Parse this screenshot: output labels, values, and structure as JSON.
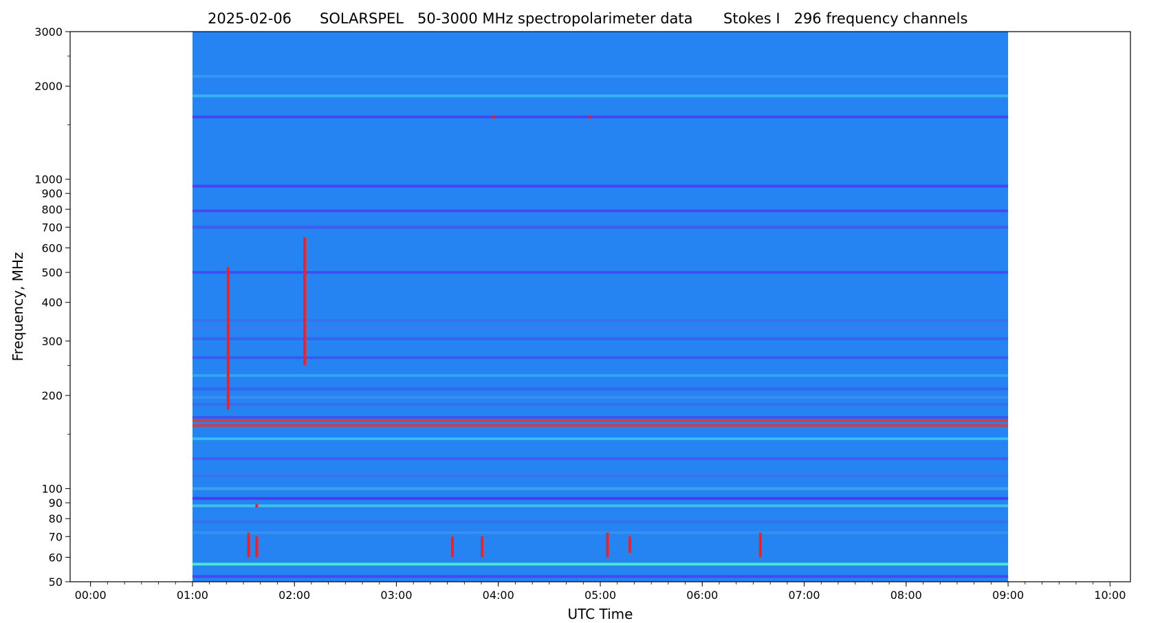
{
  "chart_data": {
    "type": "heatmap",
    "title_parts": {
      "date": "2025-02-06",
      "instrument": "SOLARSPEL   50-3000 MHz spectropolarimeter data",
      "stokes": "Stokes I   296 frequency channels"
    },
    "xlabel": "UTC Time",
    "ylabel": "Frequency, MHz",
    "x_axis": {
      "unit": "UTC hours",
      "range": [
        -0.2,
        10.2
      ],
      "major_ticks": [
        0,
        1,
        2,
        3,
        4,
        5,
        6,
        7,
        8,
        9,
        10
      ],
      "tick_labels": [
        "00:00",
        "01:00",
        "02:00",
        "03:00",
        "04:00",
        "05:00",
        "06:00",
        "07:00",
        "08:00",
        "09:00",
        "10:00"
      ],
      "minor_step": 0.16667
    },
    "y_axis": {
      "scale": "log",
      "range": [
        50,
        3000
      ],
      "tick_values": [
        50,
        60,
        70,
        80,
        90,
        100,
        200,
        300,
        400,
        500,
        600,
        700,
        800,
        900,
        1000,
        2000,
        3000
      ],
      "tick_labels": [
        "50",
        "60",
        "70",
        "80",
        "90",
        "100",
        "200",
        "300",
        "400",
        "500",
        "600",
        "700",
        "800",
        "900",
        "1000",
        "2000",
        "3000"
      ],
      "minor_ticks": [
        150,
        250,
        1500,
        2500
      ]
    },
    "data_extent": {
      "time_start": 1.0,
      "time_end": 9.0,
      "freq_min": 50,
      "freq_max": 3000
    },
    "colormap": "jet",
    "background_color": "#2684f2",
    "bands": [
      {
        "freq": 2150,
        "color": "#3a98f2"
      },
      {
        "freq": 1860,
        "color": "#39b9ee"
      },
      {
        "freq": 1590,
        "color": "#4a3ef2"
      },
      {
        "freq": 950,
        "color": "#5238ee"
      },
      {
        "freq": 790,
        "color": "#4a44f0"
      },
      {
        "freq": 700,
        "color": "#4654f2"
      },
      {
        "freq": 500,
        "color": "#4248f0"
      },
      {
        "freq": 350,
        "color": "#3f6cf0"
      },
      {
        "freq": 330,
        "color": "#3b7cf0"
      },
      {
        "freq": 305,
        "color": "#3960ef"
      },
      {
        "freq": 265,
        "color": "#3a56ee"
      },
      {
        "freq": 232,
        "color": "#37a6f0"
      },
      {
        "freq": 210,
        "color": "#3560ef"
      },
      {
        "freq": 197,
        "color": "#3a8ef2"
      },
      {
        "freq": 187,
        "color": "#3a6cf0"
      },
      {
        "freq": 170,
        "color": "#3b52ee"
      },
      {
        "freq": 166,
        "color": "#d73a3a"
      },
      {
        "freq": 160,
        "color": "#d73a3a"
      },
      {
        "freq": 145,
        "color": "#35c3f0"
      },
      {
        "freq": 125,
        "color": "#4a56ef"
      },
      {
        "freq": 110,
        "color": "#3a70f0"
      },
      {
        "freq": 100,
        "color": "#3da4f0"
      },
      {
        "freq": 93,
        "color": "#4c34ea"
      },
      {
        "freq": 88,
        "color": "#45c8e2"
      },
      {
        "freq": 78,
        "color": "#3b6cf0"
      },
      {
        "freq": 72,
        "color": "#3a90ef"
      },
      {
        "freq": 57,
        "color": "#55f0c8"
      },
      {
        "freq": 52,
        "color": "#4a40ee"
      }
    ],
    "bursts": [
      {
        "time": 1.55,
        "freq_low": 60,
        "freq_high": 72
      },
      {
        "time": 1.63,
        "freq_low": 60,
        "freq_high": 70
      },
      {
        "time": 1.63,
        "freq_low": 87,
        "freq_high": 89
      },
      {
        "time": 3.55,
        "freq_low": 60,
        "freq_high": 70
      },
      {
        "time": 3.84,
        "freq_low": 60,
        "freq_high": 70
      },
      {
        "time": 5.07,
        "freq_low": 60,
        "freq_high": 72
      },
      {
        "time": 5.29,
        "freq_low": 62,
        "freq_high": 70
      },
      {
        "time": 6.57,
        "freq_low": 60,
        "freq_high": 72
      },
      {
        "time": 4.9,
        "freq_low": 1570,
        "freq_high": 1610
      },
      {
        "time": 3.95,
        "freq_low": 1570,
        "freq_high": 1610
      },
      {
        "time": 2.1,
        "freq_low": 250,
        "freq_high": 650
      },
      {
        "time": 1.35,
        "freq_low": 180,
        "freq_high": 520
      }
    ]
  }
}
